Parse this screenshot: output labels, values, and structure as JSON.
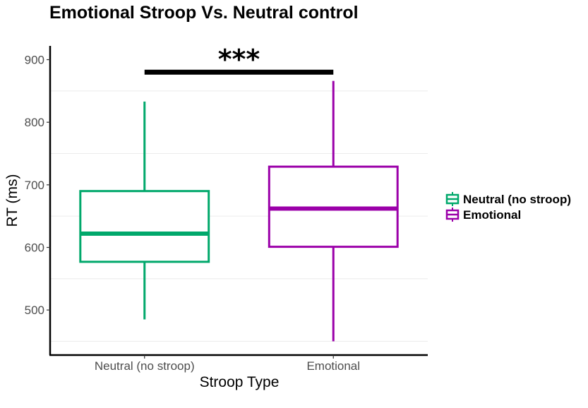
{
  "chart_data": {
    "type": "box",
    "title": "Emotional Stroop Vs. Neutral control",
    "xlabel": "Stroop Type",
    "ylabel": "RT (ms)",
    "ylim": [
      428,
      922
    ],
    "yticks": [
      500,
      600,
      700,
      800,
      900
    ],
    "grid": "horizontal minor lines",
    "legend_position": "right",
    "categories": [
      "Neutral (no stroop)",
      "Emotional"
    ],
    "series": [
      {
        "name": "Neutral (no stroop)",
        "color": "#00a86b",
        "whisker_low": 485,
        "q1": 577,
        "median": 622,
        "q3": 690,
        "whisker_high": 833
      },
      {
        "name": "Emotional",
        "color": "#9b00a9",
        "whisker_low": 450,
        "q1": 601,
        "median": 662,
        "q3": 729,
        "whisker_high": 866
      }
    ],
    "annotation": {
      "text": "***",
      "y": 880,
      "from": "Neutral (no stroop)",
      "to": "Emotional"
    }
  }
}
